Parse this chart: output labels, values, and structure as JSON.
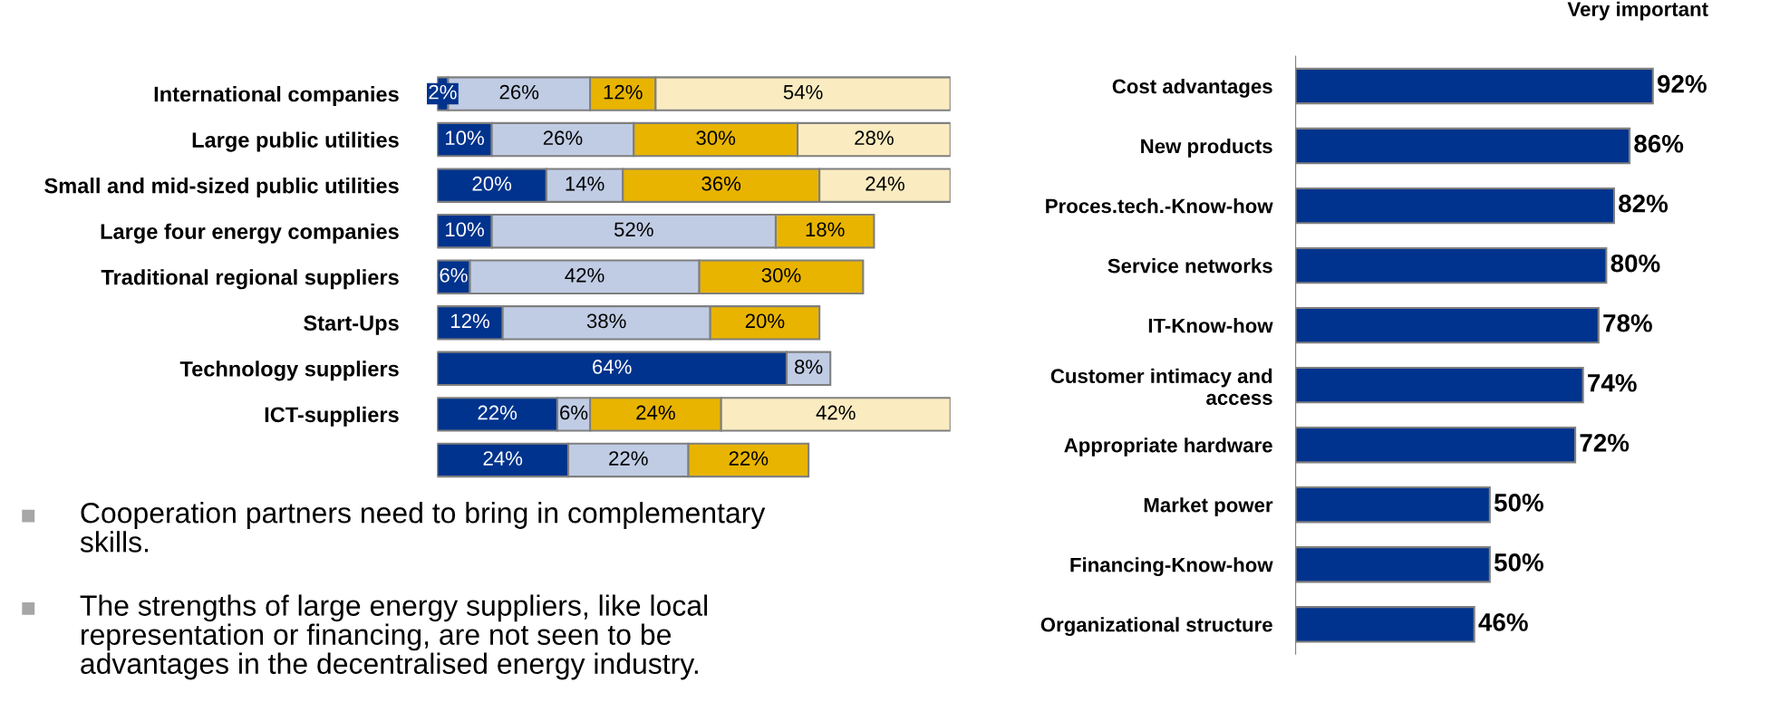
{
  "chart_data": [
    {
      "type": "bar",
      "orientation": "horizontal",
      "stacked": true,
      "tick_labels": "y",
      "categories": [
        "International companies",
        "Large public utilities",
        "Small and mid-sized public utilities",
        "Large four energy companies",
        "Traditional regional suppliers",
        "Start-Ups",
        "Technology suppliers",
        "ICT-suppliers",
        null
      ],
      "series": [
        {
          "color": "#00338d",
          "values": [
            2,
            10,
            20,
            10,
            6,
            12,
            64,
            22,
            24
          ],
          "value_labels": [
            "2%",
            "10%",
            "20%",
            "10%",
            "6%",
            "12%",
            "64%",
            "22%",
            "24%"
          ]
        },
        {
          "color": "#c0cce4",
          "values": [
            26,
            26,
            14,
            52,
            42,
            38,
            8,
            6,
            22
          ],
          "value_labels": [
            "26%",
            "26%",
            "14%",
            "52%",
            "42%",
            "38%",
            "8%",
            "6%",
            "22%"
          ]
        },
        {
          "color": "#e8b400",
          "values": [
            12,
            30,
            36,
            18,
            30,
            20,
            null,
            24,
            22
          ],
          "value_labels": [
            "12%",
            "30%",
            "36%",
            "18%",
            "30%",
            "20%",
            null,
            "24%",
            "22%"
          ]
        },
        {
          "color": "#faecc0",
          "values": [
            54,
            28,
            24,
            null,
            null,
            null,
            null,
            42,
            null
          ],
          "value_labels": [
            "54%",
            "28%",
            "24%",
            null,
            null,
            null,
            null,
            "42%",
            null
          ]
        }
      ],
      "annotations": [
        "Cooperation partners need to bring in complementary\nskills.",
        "The strengths of large energy suppliers, like local\nrepresentation or financing, are not seen to be\nadvantages in the decentralised energy industry."
      ]
    },
    {
      "type": "bar",
      "orientation": "horizontal",
      "title": "Very important",
      "tick_labels": "y",
      "color": "#00338d",
      "categories": [
        "Cost advantages",
        "New products",
        "Proces.tech.-Know-how",
        "Service networks",
        "IT-Know-how",
        "Customer intimacy and\naccess",
        "Appropriate hardware",
        "Market power",
        "Financing-Know-how",
        "Organizational structure"
      ],
      "values": [
        92,
        86,
        82,
        80,
        78,
        74,
        72,
        50,
        50,
        46
      ],
      "value_labels": [
        "92%",
        "86%",
        "82%",
        "80%",
        "78%",
        "74%",
        "72%",
        "50%",
        "50%",
        "46%"
      ]
    }
  ]
}
